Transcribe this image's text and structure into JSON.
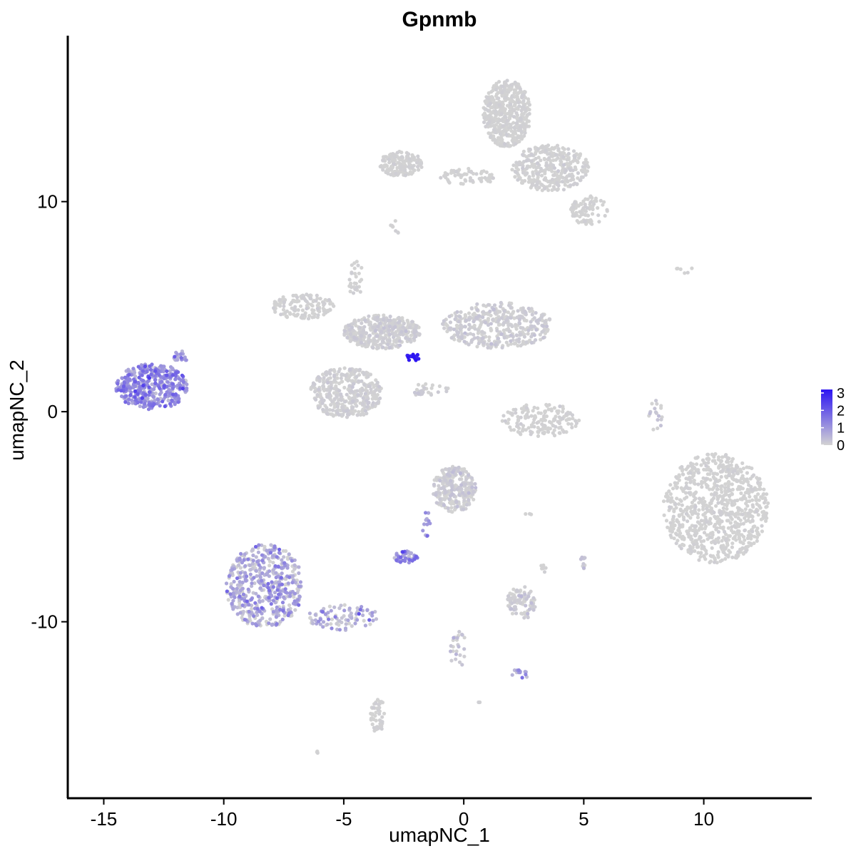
{
  "chart_data": {
    "type": "scatter",
    "title": "Gpnmb",
    "xlabel": "umapNC_1",
    "ylabel": "umapNC_2",
    "xlim": [
      -16.5,
      14.5
    ],
    "ylim": [
      -18.4,
      17.9
    ],
    "xticks": [
      -15,
      -10,
      -5,
      0,
      5,
      10
    ],
    "xtick_labels": [
      "-15",
      "-10",
      "-5",
      "0",
      "5",
      "10"
    ],
    "yticks": [
      10,
      0,
      -10
    ],
    "ytick_labels": [
      "10",
      "0",
      "-10"
    ],
    "grid": false,
    "legend": {
      "placement": "right",
      "type": "colorbar",
      "ticks": [
        3,
        2,
        1,
        0
      ],
      "tick_labels": [
        "3",
        "2",
        "1",
        "0"
      ],
      "range": [
        0,
        3.2
      ]
    },
    "colors": {
      "low": "#d3d3d3",
      "high": "#2c14f2"
    },
    "clusters": [
      {
        "cx": -13,
        "cy": 1.2,
        "rx": 1.5,
        "ry": 1.1,
        "n": 420,
        "expr_mean": 1.1,
        "expr_sd": 0.5
      },
      {
        "cx": -11.8,
        "cy": 2.6,
        "rx": 0.3,
        "ry": 0.3,
        "n": 20,
        "expr_mean": 0.9,
        "expr_sd": 0.4
      },
      {
        "cx": -8.3,
        "cy": -8.3,
        "rx": 1.6,
        "ry": 2.0,
        "n": 520,
        "expr_mean": 0.5,
        "expr_sd": 0.55
      },
      {
        "cx": -5.0,
        "cy": -9.8,
        "rx": 1.5,
        "ry": 0.6,
        "n": 90,
        "expr_mean": 0.5,
        "expr_sd": 0.5
      },
      {
        "cx": -2.4,
        "cy": -6.9,
        "rx": 0.5,
        "ry": 0.3,
        "n": 45,
        "expr_mean": 1.1,
        "expr_sd": 0.5
      },
      {
        "cx": -1.6,
        "cy": -5.4,
        "rx": 0.25,
        "ry": 0.7,
        "n": 12,
        "expr_mean": 0.9,
        "expr_sd": 0.4
      },
      {
        "cx": -0.4,
        "cy": -3.7,
        "rx": 0.9,
        "ry": 1.1,
        "n": 260,
        "expr_mean": 0.05,
        "expr_sd": 0.15
      },
      {
        "cx": 2.4,
        "cy": -9.1,
        "rx": 0.6,
        "ry": 0.8,
        "n": 90,
        "expr_mean": 0.05,
        "expr_sd": 0.15
      },
      {
        "cx": 2.3,
        "cy": -12.5,
        "rx": 0.4,
        "ry": 0.3,
        "n": 14,
        "expr_mean": 0.8,
        "expr_sd": 0.4
      },
      {
        "cx": -3.6,
        "cy": -14.4,
        "rx": 0.3,
        "ry": 0.9,
        "n": 45,
        "expr_mean": 0.0,
        "expr_sd": 0.05
      },
      {
        "cx": -0.2,
        "cy": -11.3,
        "rx": 0.4,
        "ry": 0.9,
        "n": 25,
        "expr_mean": 0.1,
        "expr_sd": 0.2
      },
      {
        "cx": 10.5,
        "cy": -4.6,
        "rx": 2.2,
        "ry": 2.6,
        "n": 820,
        "expr_mean": 0.0,
        "expr_sd": 0.04
      },
      {
        "cx": 3.2,
        "cy": -0.4,
        "rx": 1.6,
        "ry": 0.8,
        "n": 160,
        "expr_mean": 0.0,
        "expr_sd": 0.05
      },
      {
        "cx": 8.0,
        "cy": -0.2,
        "rx": 0.3,
        "ry": 0.8,
        "n": 18,
        "expr_mean": 0.1,
        "expr_sd": 0.2
      },
      {
        "cx": -4.9,
        "cy": 0.9,
        "rx": 1.5,
        "ry": 1.2,
        "n": 380,
        "expr_mean": 0.02,
        "expr_sd": 0.08
      },
      {
        "cx": -3.4,
        "cy": 3.8,
        "rx": 1.6,
        "ry": 0.8,
        "n": 380,
        "expr_mean": 0.03,
        "expr_sd": 0.1
      },
      {
        "cx": -6.7,
        "cy": 5.0,
        "rx": 1.3,
        "ry": 0.6,
        "n": 130,
        "expr_mean": 0.0,
        "expr_sd": 0.05
      },
      {
        "cx": 1.4,
        "cy": 4.1,
        "rx": 2.3,
        "ry": 1.1,
        "n": 420,
        "expr_mean": 0.04,
        "expr_sd": 0.12
      },
      {
        "cx": -4.5,
        "cy": 6.3,
        "rx": 0.3,
        "ry": 1.0,
        "n": 30,
        "expr_mean": 0.0,
        "expr_sd": 0.05
      },
      {
        "cx": -2.1,
        "cy": 2.6,
        "rx": 0.3,
        "ry": 0.2,
        "n": 18,
        "expr_mean": 2.9,
        "expr_sd": 0.3
      },
      {
        "cx": -1.4,
        "cy": 1.0,
        "rx": 0.8,
        "ry": 0.4,
        "n": 28,
        "expr_mean": 0.05,
        "expr_sd": 0.1
      },
      {
        "cx": -2.6,
        "cy": 11.8,
        "rx": 0.9,
        "ry": 0.6,
        "n": 160,
        "expr_mean": 0.0,
        "expr_sd": 0.04
      },
      {
        "cx": 1.8,
        "cy": 14.2,
        "rx": 1.0,
        "ry": 1.6,
        "n": 480,
        "expr_mean": 0.0,
        "expr_sd": 0.04
      },
      {
        "cx": 3.6,
        "cy": 11.6,
        "rx": 1.6,
        "ry": 1.1,
        "n": 330,
        "expr_mean": 0.01,
        "expr_sd": 0.06
      },
      {
        "cx": 5.2,
        "cy": 9.6,
        "rx": 0.8,
        "ry": 0.7,
        "n": 90,
        "expr_mean": 0.0,
        "expr_sd": 0.04
      },
      {
        "cx": 0.2,
        "cy": 11.2,
        "rx": 1.2,
        "ry": 0.4,
        "n": 60,
        "expr_mean": 0.0,
        "expr_sd": 0.04
      },
      {
        "cx": -2.9,
        "cy": 8.7,
        "rx": 0.2,
        "ry": 0.4,
        "n": 8,
        "expr_mean": 0.0,
        "expr_sd": 0.04
      },
      {
        "cx": 9.2,
        "cy": 6.7,
        "rx": 0.4,
        "ry": 0.2,
        "n": 6,
        "expr_mean": 0.0,
        "expr_sd": 0.04
      },
      {
        "cx": 5.0,
        "cy": -7.2,
        "rx": 0.2,
        "ry": 0.3,
        "n": 10,
        "expr_mean": 0.1,
        "expr_sd": 0.2
      },
      {
        "cx": 3.3,
        "cy": -7.5,
        "rx": 0.15,
        "ry": 0.2,
        "n": 6,
        "expr_mean": 0.0,
        "expr_sd": 0.04
      },
      {
        "cx": -6.1,
        "cy": -16.2,
        "rx": 0.1,
        "ry": 0.1,
        "n": 3,
        "expr_mean": 0.0,
        "expr_sd": 0.04
      },
      {
        "cx": 0.6,
        "cy": -13.9,
        "rx": 0.1,
        "ry": 0.1,
        "n": 2,
        "expr_mean": 0.0,
        "expr_sd": 0.04
      },
      {
        "cx": 2.7,
        "cy": -4.9,
        "rx": 0.2,
        "ry": 0.1,
        "n": 3,
        "expr_mean": 0.0,
        "expr_sd": 0.04
      }
    ]
  }
}
